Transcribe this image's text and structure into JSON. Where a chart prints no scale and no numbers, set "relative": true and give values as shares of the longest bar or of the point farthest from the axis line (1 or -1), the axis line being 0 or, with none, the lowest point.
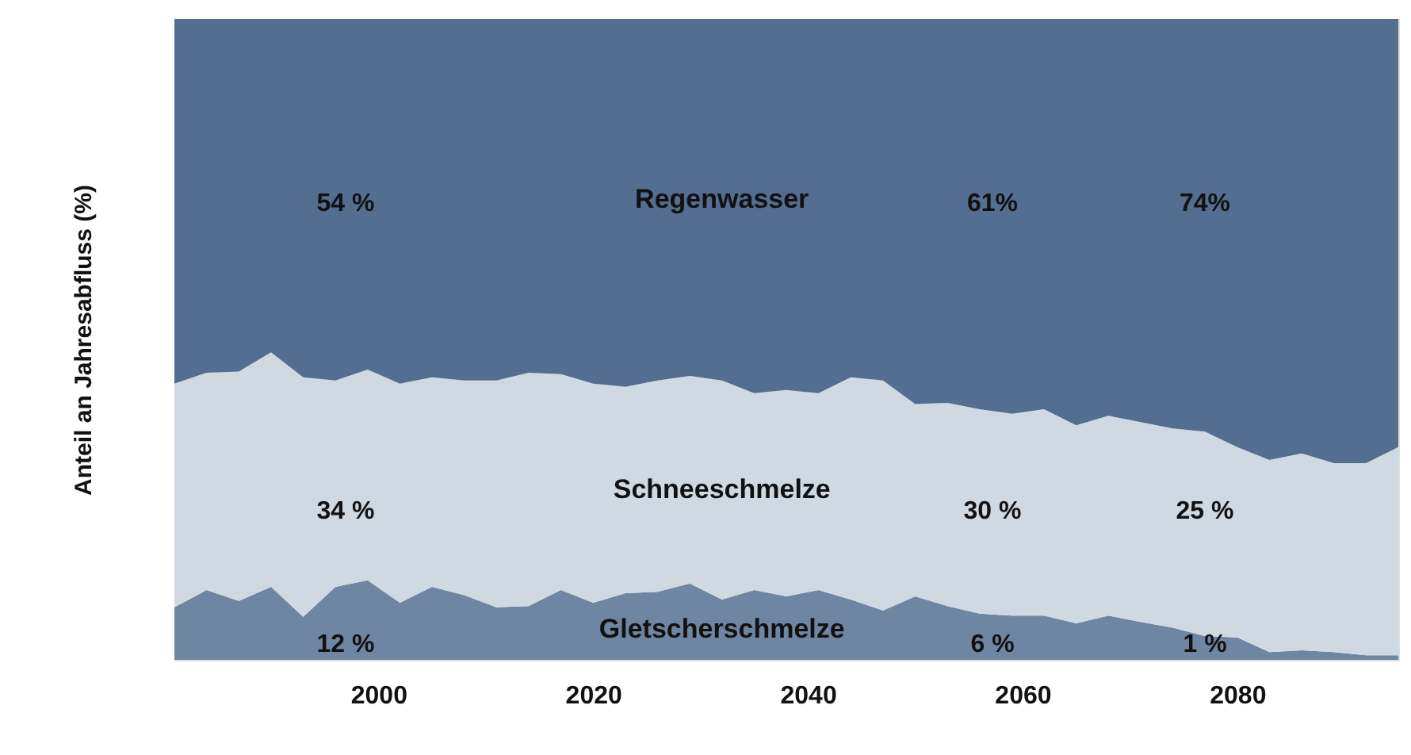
{
  "chart_data": {
    "type": "area",
    "stacked": true,
    "relative": true,
    "ylabel": "Anteil an Jahresabfluss (%)",
    "x": [
      1981,
      1984,
      1987,
      1990,
      1993,
      1996,
      1999,
      2002,
      2005,
      2008,
      2011,
      2014,
      2017,
      2020,
      2023,
      2026,
      2029,
      2032,
      2035,
      2038,
      2041,
      2044,
      2047,
      2050,
      2053,
      2056,
      2059,
      2062,
      2065,
      2068,
      2071,
      2074,
      2077,
      2080,
      2083,
      2086,
      2089,
      2092,
      2095
    ],
    "xlim": [
      1981,
      2095
    ],
    "xticks": [
      2000,
      2020,
      2040,
      2060,
      2080
    ],
    "grid": false,
    "series": [
      {
        "name": "Gletscherschmelze",
        "color": "#6f86a3",
        "values": [
          0.082,
          0.109,
          0.092,
          0.114,
          0.067,
          0.114,
          0.124,
          0.089,
          0.114,
          0.101,
          0.082,
          0.084,
          0.109,
          0.089,
          0.104,
          0.106,
          0.119,
          0.094,
          0.109,
          0.099,
          0.109,
          0.094,
          0.077,
          0.099,
          0.084,
          0.072,
          0.069,
          0.069,
          0.057,
          0.069,
          0.059,
          0.05,
          0.037,
          0.035,
          0.012,
          0.015,
          0.012,
          0.007,
          0.007
        ]
      },
      {
        "name": "Schneeschmelze",
        "color": "#cfd9e1",
        "values": [
          0.349,
          0.339,
          0.358,
          0.366,
          0.374,
          0.322,
          0.329,
          0.342,
          0.327,
          0.335,
          0.354,
          0.364,
          0.337,
          0.342,
          0.322,
          0.33,
          0.324,
          0.342,
          0.307,
          0.322,
          0.307,
          0.347,
          0.359,
          0.3,
          0.317,
          0.319,
          0.315,
          0.322,
          0.309,
          0.312,
          0.312,
          0.311,
          0.319,
          0.297,
          0.3,
          0.307,
          0.295,
          0.3,
          0.325
        ]
      },
      {
        "name": "Regenwasser",
        "color": "#546e91",
        "values": [
          0.569,
          0.552,
          0.55,
          0.52,
          0.559,
          0.564,
          0.547,
          0.569,
          0.559,
          0.564,
          0.564,
          0.552,
          0.554,
          0.569,
          0.574,
          0.564,
          0.557,
          0.564,
          0.584,
          0.579,
          0.584,
          0.559,
          0.564,
          0.601,
          0.599,
          0.609,
          0.616,
          0.609,
          0.634,
          0.619,
          0.629,
          0.639,
          0.644,
          0.668,
          0.688,
          0.678,
          0.693,
          0.693,
          0.668
        ]
      }
    ],
    "annotations": [
      "54 %",
      "61%",
      "74%",
      "34 %",
      "30 %",
      "25 %",
      "12 %",
      "6 %",
      "1 %"
    ]
  }
}
